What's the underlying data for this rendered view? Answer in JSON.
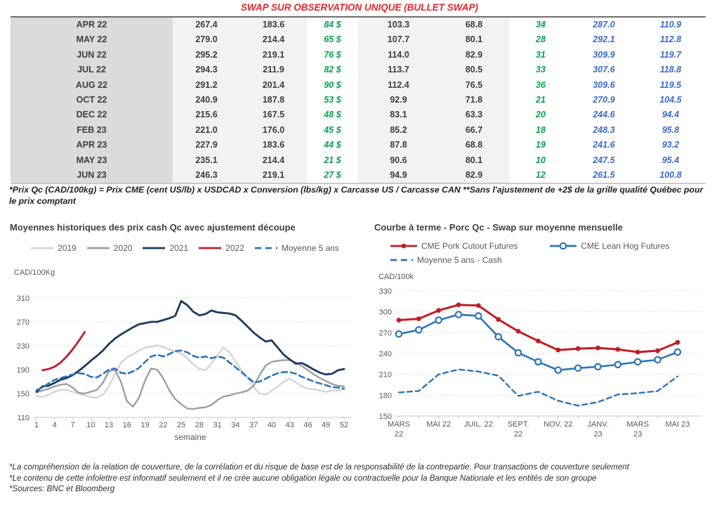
{
  "title": "SWAP SUR OBSERVATION UNIQUE (BULLET SWAP)",
  "table": {
    "rows": [
      [
        "APR 22",
        "267.4",
        "183.6",
        "84 $",
        "103.3",
        "68.8",
        "34",
        "287.0",
        "110.9"
      ],
      [
        "MAY 22",
        "279.0",
        "214.4",
        "65 $",
        "107.7",
        "80.1",
        "28",
        "292.1",
        "112.8"
      ],
      [
        "JUN 22",
        "295.2",
        "219.1",
        "76 $",
        "114.0",
        "82.9",
        "31",
        "309.9",
        "119.7"
      ],
      [
        "JUL 22",
        "294.3",
        "211.9",
        "82 $",
        "113.7",
        "80.5",
        "33",
        "307.6",
        "118.8"
      ],
      [
        "AUG 22",
        "291.2",
        "201.4",
        "90 $",
        "112.4",
        "76.5",
        "36",
        "309.6",
        "119.5"
      ],
      [
        "OCT 22",
        "240.9",
        "187.8",
        "53 $",
        "92.9",
        "71.8",
        "21",
        "270.9",
        "104.5"
      ],
      [
        "DEC 22",
        "215.6",
        "167.5",
        "48 $",
        "83.1",
        "63.3",
        "20",
        "244.6",
        "94.4"
      ],
      [
        "FEB 23",
        "221.0",
        "176.0",
        "45 $",
        "85.2",
        "66.7",
        "18",
        "248.3",
        "95.8"
      ],
      [
        "APR 23",
        "227.9",
        "183.6",
        "44 $",
        "87.8",
        "68.8",
        "19",
        "241.6",
        "93.2"
      ],
      [
        "MAY 23",
        "235.1",
        "214.4",
        "21 $",
        "90.6",
        "80.1",
        "10",
        "247.5",
        "95.4"
      ],
      [
        "JUN 23",
        "246.3",
        "219.1",
        "27 $",
        "94.9",
        "82.9",
        "12",
        "261.5",
        "100.8"
      ]
    ]
  },
  "table_note": "*Prix Qc (CAD/100kg) = Prix CME (cent US/lb) x USDCAD x Conversion (lbs/kg) x Carcasse US / Carcasse CAN **Sans l'ajustement de +2$ de la grille qualité Québec pour le prix comptant",
  "chart_data": [
    {
      "type": "line",
      "title": "Moyennes historiques des prix cash Qc avec ajustement découpe",
      "ylabel": "CAD/100Kg",
      "xlabel": "semaine",
      "ylim": [
        110,
        310
      ],
      "yticks": [
        110,
        150,
        190,
        230,
        270,
        310
      ],
      "xmin": 1,
      "xmax": 52,
      "xticks": [
        1,
        4,
        7,
        10,
        13,
        16,
        19,
        22,
        25,
        28,
        31,
        34,
        37,
        40,
        43,
        46,
        49,
        52
      ],
      "grid": true,
      "legend_position": "top",
      "series": [
        {
          "name": "2019",
          "color": "#d4d4d4",
          "width": 2.4,
          "start": 1,
          "values": [
            146,
            144,
            148,
            153,
            156,
            156,
            153,
            150,
            147,
            144,
            143,
            148,
            162,
            182,
            201,
            211,
            216,
            222,
            227,
            228,
            231,
            228,
            224,
            221,
            217,
            209,
            199,
            191,
            189,
            200,
            214,
            227,
            219,
            204,
            189,
            177,
            161,
            150,
            148,
            155,
            162,
            170,
            175,
            169,
            162,
            158,
            157,
            155,
            153,
            155,
            155,
            158
          ]
        },
        {
          "name": "2020",
          "color": "#9e9e9e",
          "width": 2.4,
          "start": 1,
          "values": [
            152,
            155,
            158,
            162,
            165,
            166,
            160,
            151,
            150,
            153,
            156,
            168,
            187,
            190,
            170,
            137,
            128,
            143,
            172,
            192,
            190,
            176,
            156,
            141,
            132,
            125,
            124,
            126,
            127,
            131,
            139,
            145,
            147,
            150,
            152,
            155,
            163,
            181,
            197,
            203,
            205,
            206,
            206,
            202,
            196,
            189,
            182,
            176,
            171,
            166,
            163,
            162
          ]
        },
        {
          "name": "2021",
          "color": "#1b3a5e",
          "width": 2.8,
          "start": 1,
          "values": [
            153,
            162,
            163,
            168,
            173,
            176,
            181,
            188,
            196,
            205,
            213,
            222,
            233,
            242,
            249,
            255,
            261,
            266,
            268,
            270,
            270,
            273,
            276,
            280,
            305,
            298,
            287,
            281,
            283,
            289,
            286,
            285,
            284,
            281,
            272,
            262,
            252,
            244,
            237,
            239,
            227,
            215,
            207,
            200,
            201,
            196,
            190,
            185,
            182,
            183,
            189,
            191
          ]
        },
        {
          "name": "2022",
          "color": "#ba2025",
          "width": 2.8,
          "start": 2,
          "values": [
            189,
            191,
            195,
            202,
            212,
            224,
            238,
            253
          ]
        },
        {
          "name": "Moyenne 5 ans",
          "color": "#2e75b6",
          "width": 2.6,
          "dash": "8 5",
          "start": 1,
          "values": [
            156,
            160,
            167,
            173,
            176,
            179,
            182,
            184,
            183,
            178,
            177,
            183,
            190,
            192,
            185,
            183,
            187,
            193,
            203,
            212,
            215,
            212,
            216,
            221,
            222,
            219,
            213,
            210,
            212,
            209,
            212,
            210,
            202,
            194,
            186,
            177,
            169,
            170,
            175,
            180,
            184,
            186,
            186,
            183,
            178,
            174,
            170,
            167,
            164,
            161,
            160,
            158
          ]
        }
      ]
    },
    {
      "type": "line",
      "title": "Courbe à terme - Porc Qc - Swap sur moyenne mensuelle",
      "ylabel": "CAD/100k",
      "xlabel": "",
      "ylim": [
        150,
        330
      ],
      "yticks": [
        150,
        180,
        210,
        240,
        270,
        300,
        330
      ],
      "xmin": 0,
      "xmax": 14,
      "xticks": [
        {
          "p": 0,
          "l": [
            "MARS",
            "22"
          ]
        },
        {
          "p": 2,
          "l": [
            "MAI 22"
          ]
        },
        {
          "p": 4,
          "l": [
            "JUIL. 22"
          ]
        },
        {
          "p": 6,
          "l": [
            "SEPT.",
            "22"
          ]
        },
        {
          "p": 8,
          "l": [
            "NOV. 22"
          ]
        },
        {
          "p": 10,
          "l": [
            "JANV.",
            "23"
          ]
        },
        {
          "p": 12,
          "l": [
            "MARS",
            "23"
          ]
        },
        {
          "p": 14,
          "l": [
            "MAI 23"
          ]
        }
      ],
      "grid": true,
      "legend_position": "top",
      "series": [
        {
          "name": "CME Pork Cutout Futures",
          "color": "#bf1e24",
          "width": 3,
          "marker": "filled",
          "start": 0,
          "values": [
            288,
            290,
            302,
            310,
            309,
            289,
            272,
            258,
            245,
            247,
            248,
            246,
            242,
            244,
            256
          ]
        },
        {
          "name": "CME Lean Hog Futures",
          "color": "#2e75b6",
          "width": 2.6,
          "marker": "open",
          "start": 0,
          "values": [
            268,
            274,
            288,
            296,
            294,
            264,
            241,
            228,
            216,
            219,
            221,
            224,
            228,
            231,
            242
          ]
        },
        {
          "name": "Moyenne 5 ans - Cash",
          "color": "#2e75b6",
          "width": 2.4,
          "dash": "7 5",
          "start": 0,
          "values": [
            184,
            186,
            210,
            217,
            214,
            208,
            179,
            185,
            172,
            165,
            170,
            181,
            183,
            186,
            207
          ]
        }
      ]
    }
  ],
  "footer": [
    "*La compréhension de la relation de couverture, de la corrélation et du risque de base est de la responsabilité de la contrepartie. Pour transactions de couverture seulement",
    "*Le contenu de cette infolettre est informatif seulement et il ne crée aucune obligation légale ou contractuelle pour la Banque Nationale et les entités de son groupe",
    "*Sources: BNC et Bloomberg"
  ],
  "colors": {
    "title_red": "#e4262c",
    "table_green": "#0aa14e",
    "table_blue": "#3a6bc8",
    "navy_2021": "#1b3a5e",
    "red_2022": "#ba2025",
    "blue_dashed": "#2e75b6",
    "gray_2020": "#9e9e9e",
    "lightgray_2019": "#d4d4d4"
  }
}
